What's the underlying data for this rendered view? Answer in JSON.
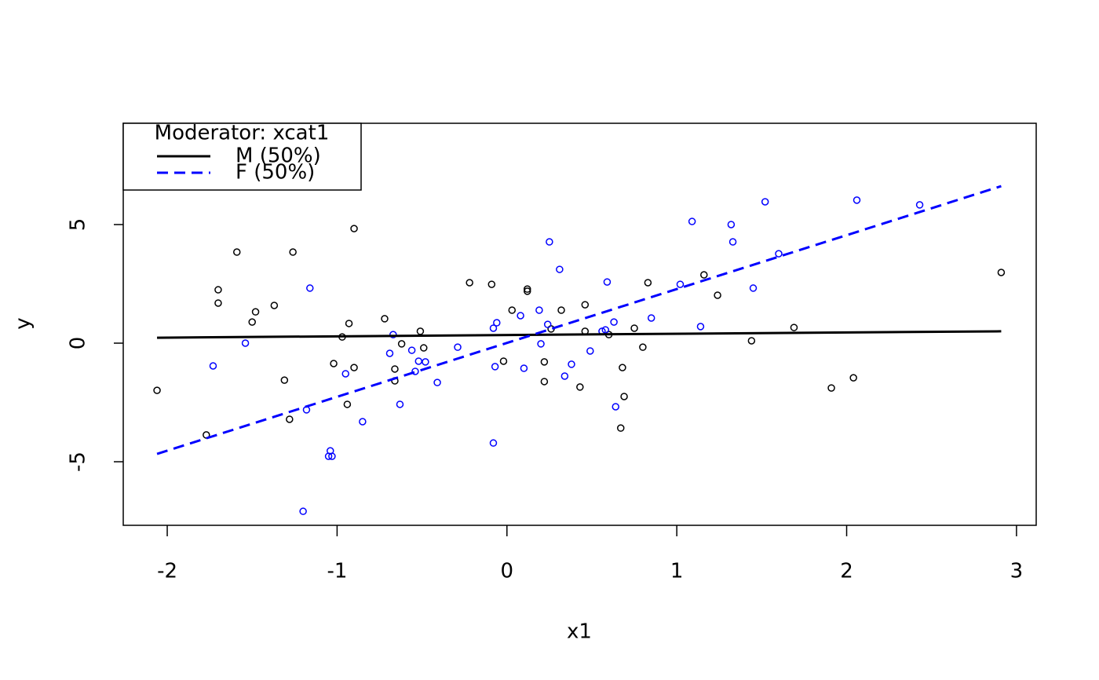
{
  "chart_data": {
    "type": "scatter",
    "xlabel": "x1",
    "ylabel": "y",
    "xlim": [
      -2.259,
      3.116
    ],
    "ylim": [
      -7.68,
      9.27
    ],
    "xticks": [
      -2,
      -1,
      0,
      1,
      2,
      3
    ],
    "yticks": [
      -5,
      0,
      5
    ],
    "legend": {
      "title": "Moderator: xcat1",
      "position": "top-left"
    },
    "series": [
      {
        "name": "M (50%)",
        "color": "#000000",
        "dash": "solid",
        "x": [
          -2.06,
          -1.77,
          -1.59,
          -1.7,
          -1.7,
          -1.48,
          -1.5,
          -1.37,
          -1.26,
          -1.31,
          -1.28,
          -0.9,
          -0.93,
          -0.97,
          -1.02,
          -0.9,
          -0.94,
          -0.72,
          -0.66,
          -0.66,
          -0.62,
          -0.51,
          -0.49,
          -0.22,
          -0.09,
          0.12,
          0.12,
          0.03,
          -0.02,
          0.22,
          0.22,
          0.26,
          0.32,
          0.46,
          0.46,
          0.43,
          0.6,
          0.75,
          0.83,
          0.8,
          0.68,
          0.69,
          0.67,
          1.16,
          1.24,
          1.44,
          1.69,
          1.91,
          2.04,
          2.91
        ],
        "y": [
          -1.99,
          -3.87,
          3.84,
          2.25,
          1.69,
          1.32,
          0.89,
          1.59,
          3.84,
          -1.56,
          -3.21,
          4.83,
          0.83,
          0.26,
          -0.86,
          -1.03,
          -2.58,
          1.03,
          -1.09,
          -1.59,
          -0.03,
          0.5,
          -0.2,
          2.55,
          2.48,
          2.28,
          2.19,
          1.39,
          -0.76,
          -0.79,
          -1.62,
          0.6,
          1.39,
          1.62,
          0.5,
          -1.85,
          0.36,
          0.63,
          2.55,
          -0.17,
          -1.03,
          -2.25,
          -3.58,
          2.88,
          2.02,
          0.1,
          0.66,
          -1.89,
          -1.46,
          2.98
        ],
        "fit": {
          "x": [
            -2.06,
            2.91
          ],
          "y": [
            0.23,
            0.5
          ]
        }
      },
      {
        "name": "F (50%)",
        "color": "#0000ff",
        "dash": "dashed",
        "x": [
          -1.73,
          -1.54,
          -1.16,
          -1.18,
          -1.2,
          -1.04,
          -1.05,
          -1.03,
          -0.95,
          -0.85,
          -0.67,
          -0.69,
          -0.56,
          -0.52,
          -0.54,
          -0.48,
          -0.41,
          -0.29,
          -0.63,
          -0.08,
          -0.06,
          -0.07,
          -0.08,
          0.08,
          0.1,
          0.19,
          0.2,
          0.24,
          0.25,
          0.31,
          0.34,
          0.38,
          0.49,
          0.56,
          0.58,
          0.59,
          0.63,
          0.64,
          0.85,
          1.02,
          1.09,
          1.14,
          1.32,
          1.33,
          1.45,
          1.52,
          1.6,
          2.06,
          2.43
        ],
        "y": [
          -0.96,
          0.0,
          2.32,
          -2.81,
          -7.09,
          -4.54,
          -4.77,
          -4.77,
          -1.29,
          -3.31,
          0.36,
          -0.43,
          -0.3,
          -0.76,
          -1.19,
          -0.79,
          -1.66,
          -0.17,
          -2.58,
          0.63,
          0.86,
          -0.99,
          -4.21,
          1.16,
          -1.06,
          1.39,
          -0.03,
          0.79,
          4.27,
          3.11,
          -1.39,
          -0.89,
          -0.33,
          0.5,
          0.56,
          2.58,
          0.89,
          -2.68,
          1.06,
          2.48,
          5.13,
          0.7,
          5.0,
          4.27,
          2.32,
          5.96,
          3.77,
          6.03,
          5.83
        ],
        "fit": {
          "x": [
            -2.06,
            2.91
          ],
          "y": [
            -4.67,
            6.62
          ]
        }
      }
    ]
  }
}
